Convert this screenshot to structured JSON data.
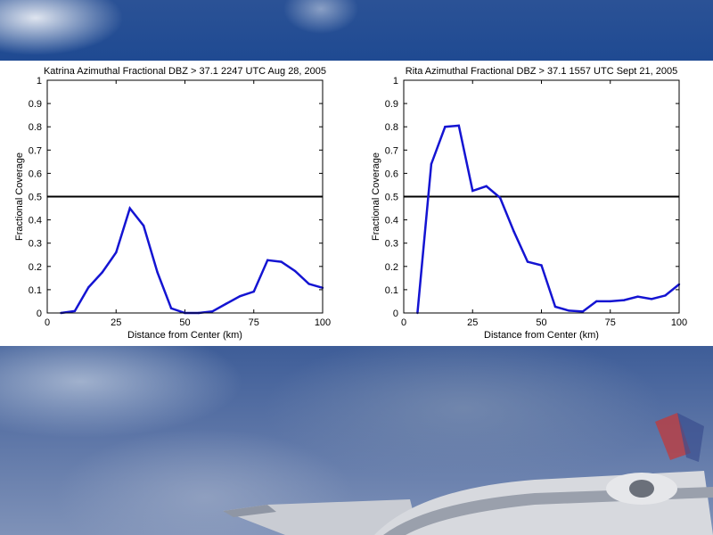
{
  "chart_data": [
    {
      "type": "line",
      "title": "Katrina Azimuthal Fractional DBZ > 37.1 2247 UTC Aug 28, 2005",
      "xlabel": "Distance from Center (km)",
      "ylabel": "Fractional Coverage",
      "xlim": [
        0,
        100
      ],
      "ylim": [
        0,
        1
      ],
      "xticks": [
        "0",
        "25",
        "50",
        "75",
        "100"
      ],
      "yticks": [
        "0",
        "0.1",
        "0.2",
        "0.3",
        "0.4",
        "0.5",
        "0.6",
        "0.7",
        "0.8",
        "0.9",
        "1"
      ],
      "grid": false,
      "reference_line": {
        "y": 0.5,
        "color": "#000000"
      },
      "series": [
        {
          "color": "#1414d2",
          "x": [
            5,
            10,
            15,
            20,
            25,
            30,
            35,
            40,
            45,
            50,
            55,
            60,
            65,
            70,
            75,
            80,
            85,
            90,
            95,
            100
          ],
          "y": [
            0.0,
            0.008,
            0.11,
            0.175,
            0.26,
            0.45,
            0.375,
            0.175,
            0.02,
            0.0,
            0.0,
            0.007,
            0.04,
            0.072,
            0.092,
            0.227,
            0.22,
            0.18,
            0.125,
            0.108
          ]
        }
      ]
    },
    {
      "type": "line",
      "title": "Rita Azimuthal Fractional DBZ > 37.1 1557 UTC Sept 21, 2005",
      "xlabel": "Distance from Center (km)",
      "ylabel": "Fractional Coverage",
      "xlim": [
        0,
        100
      ],
      "ylim": [
        0,
        1
      ],
      "xticks": [
        "0",
        "25",
        "50",
        "75",
        "100"
      ],
      "yticks": [
        "0",
        "0.1",
        "0.2",
        "0.3",
        "0.4",
        "0.5",
        "0.6",
        "0.7",
        "0.8",
        "0.9",
        "1"
      ],
      "grid": false,
      "reference_line": {
        "y": 0.5,
        "color": "#000000"
      },
      "series": [
        {
          "color": "#1414d2",
          "x": [
            5,
            10,
            15,
            20,
            25,
            30,
            35,
            40,
            45,
            50,
            55,
            60,
            65,
            70,
            75,
            80,
            85,
            90,
            95,
            100
          ],
          "y": [
            0.0,
            0.64,
            0.8,
            0.805,
            0.525,
            0.545,
            0.495,
            0.35,
            0.22,
            0.205,
            0.027,
            0.01,
            0.006,
            0.05,
            0.05,
            0.055,
            0.07,
            0.06,
            0.075,
            0.123
          ]
        }
      ]
    }
  ]
}
